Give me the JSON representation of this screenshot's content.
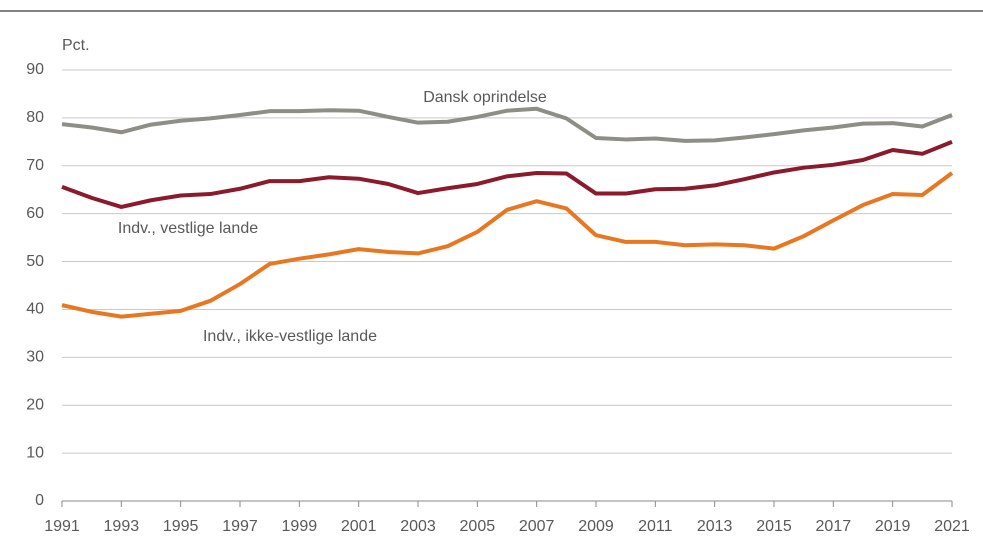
{
  "chart_data": {
    "type": "line",
    "y_label": "Pct.",
    "x": [
      1991,
      1992,
      1993,
      1994,
      1995,
      1996,
      1997,
      1998,
      1999,
      2000,
      2001,
      2002,
      2003,
      2004,
      2005,
      2006,
      2007,
      2008,
      2009,
      2010,
      2011,
      2012,
      2013,
      2014,
      2015,
      2016,
      2017,
      2018,
      2019,
      2020,
      2021
    ],
    "series": [
      {
        "name": "Dansk oprindelse",
        "color": "#8e8e86",
        "values": [
          78.7,
          78.0,
          77.0,
          78.6,
          79.4,
          79.9,
          80.6,
          81.4,
          81.4,
          81.6,
          81.5,
          80.2,
          79.0,
          79.2,
          80.2,
          81.5,
          81.9,
          79.9,
          75.8,
          75.5,
          75.7,
          75.2,
          75.3,
          75.9,
          76.6,
          77.4,
          78.0,
          78.8,
          78.9,
          78.2,
          80.6
        ]
      },
      {
        "name": "Indv., vestlige lande",
        "color": "#8b1a2e",
        "values": [
          65.6,
          63.3,
          61.4,
          62.8,
          63.8,
          64.1,
          65.2,
          66.8,
          66.8,
          67.6,
          67.3,
          66.2,
          64.3,
          65.3,
          66.2,
          67.8,
          68.5,
          68.4,
          64.2,
          64.2,
          65.1,
          65.2,
          65.9,
          67.2,
          68.6,
          69.6,
          70.2,
          71.2,
          73.3,
          72.5,
          75.0
        ]
      },
      {
        "name": "Indv., ikke-vestlige lande",
        "color": "#e87722",
        "values": [
          40.9,
          39.5,
          38.5,
          39.1,
          39.7,
          41.8,
          45.3,
          49.5,
          50.6,
          51.5,
          52.6,
          52.0,
          51.7,
          53.2,
          56.2,
          60.8,
          62.6,
          61.1,
          55.5,
          54.1,
          54.1,
          53.4,
          53.6,
          53.4,
          52.7,
          55.3,
          58.6,
          61.8,
          64.1,
          63.9,
          68.5
        ]
      }
    ],
    "xlim": [
      1991,
      2021
    ],
    "xticks": [
      1991,
      1993,
      1995,
      1997,
      1999,
      2001,
      2003,
      2005,
      2007,
      2009,
      2011,
      2013,
      2015,
      2017,
      2019,
      2021
    ],
    "ylim": [
      0,
      90
    ],
    "yticks": [
      0,
      10,
      20,
      30,
      40,
      50,
      60,
      70,
      80,
      90
    ],
    "grid": true
  }
}
